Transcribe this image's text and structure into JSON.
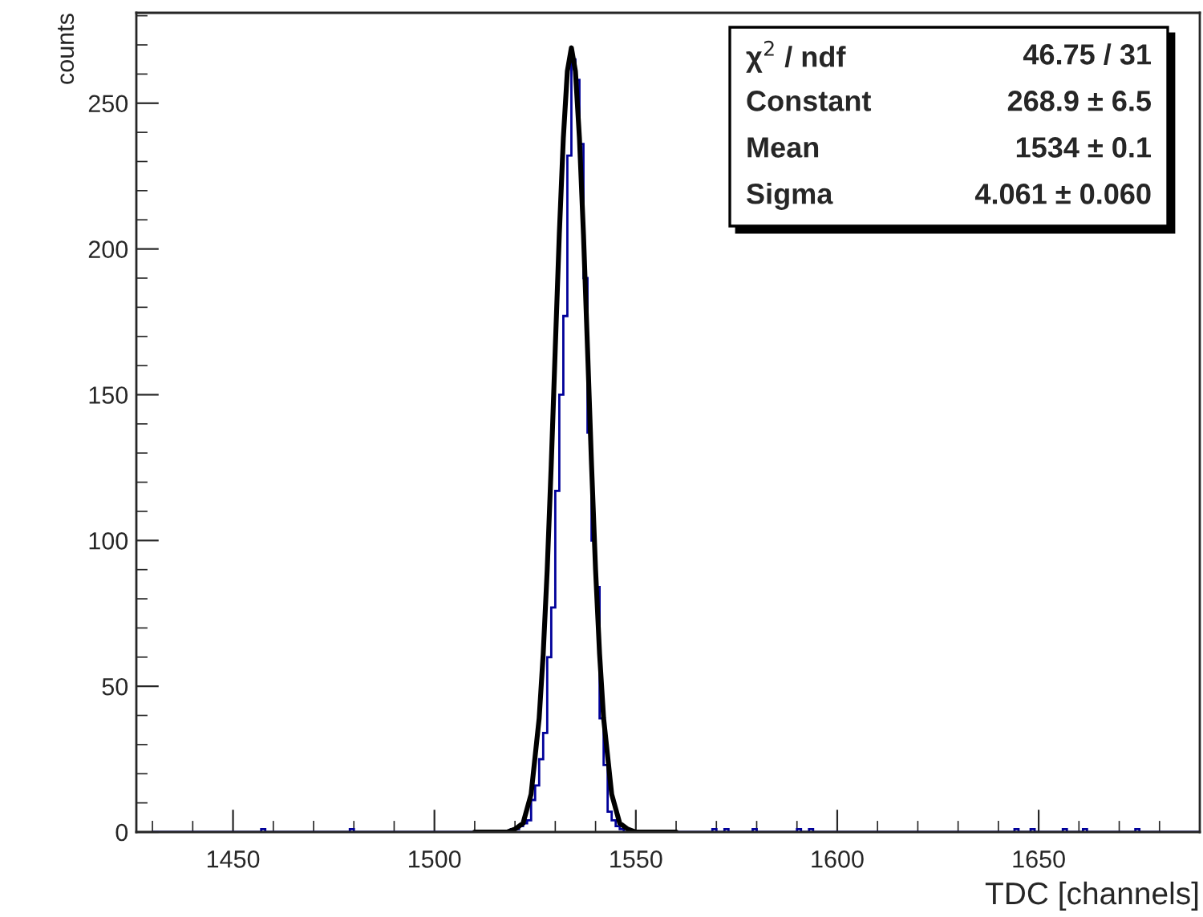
{
  "chart_data": {
    "type": "histogram",
    "xlabel": "TDC [channels]",
    "ylabel": "counts",
    "xlim": [
      1426,
      1690
    ],
    "ylim": [
      0,
      281
    ],
    "xticks": [
      1450,
      1500,
      1550,
      1600,
      1650
    ],
    "yticks": [
      0,
      50,
      100,
      150,
      200,
      250
    ],
    "grid": false,
    "legend": false,
    "bins": [
      1430,
      1431,
      1432,
      1433,
      1434,
      1435,
      1436,
      1437,
      1438,
      1439,
      1440,
      1441,
      1442,
      1443,
      1444,
      1445,
      1446,
      1447,
      1448,
      1449,
      1450,
      1451,
      1452,
      1453,
      1454,
      1455,
      1456,
      1457,
      1458,
      1459,
      1460,
      1461,
      1462,
      1463,
      1464,
      1465,
      1466,
      1467,
      1468,
      1469,
      1470,
      1471,
      1472,
      1473,
      1474,
      1475,
      1476,
      1477,
      1478,
      1479,
      1480,
      1481,
      1482,
      1483,
      1484,
      1485,
      1486,
      1487,
      1488,
      1489,
      1490,
      1491,
      1492,
      1493,
      1494,
      1495,
      1496,
      1497,
      1498,
      1499,
      1500,
      1501,
      1502,
      1503,
      1504,
      1505,
      1506,
      1507,
      1508,
      1509,
      1510,
      1511,
      1512,
      1513,
      1514,
      1515,
      1516,
      1517,
      1518,
      1519,
      1520,
      1521,
      1522,
      1523,
      1524,
      1525,
      1526,
      1527,
      1528,
      1529,
      1530,
      1531,
      1532,
      1533,
      1534,
      1535,
      1536,
      1537,
      1538,
      1539,
      1540,
      1541,
      1542,
      1543,
      1544,
      1545,
      1546,
      1547,
      1548,
      1549,
      1550,
      1551,
      1552,
      1553,
      1554,
      1555,
      1556,
      1557,
      1558,
      1559,
      1560,
      1561,
      1562,
      1563,
      1564,
      1565,
      1566,
      1567,
      1568,
      1569,
      1570,
      1571,
      1572,
      1573,
      1574,
      1575,
      1576,
      1577,
      1578,
      1579,
      1580,
      1581,
      1582,
      1583,
      1584,
      1585,
      1586,
      1587,
      1588,
      1589,
      1590,
      1591,
      1592,
      1593,
      1594,
      1595,
      1596,
      1597,
      1598,
      1599,
      1600,
      1601,
      1602,
      1603,
      1604,
      1605,
      1606,
      1607,
      1608,
      1609,
      1610,
      1611,
      1612,
      1613,
      1614,
      1615,
      1616,
      1617,
      1618,
      1619,
      1620,
      1621,
      1622,
      1623,
      1624,
      1625,
      1626,
      1627,
      1628,
      1629,
      1630,
      1631,
      1632,
      1633,
      1634,
      1635,
      1636,
      1637,
      1638,
      1639,
      1640,
      1641,
      1642,
      1643,
      1644,
      1645,
      1646,
      1647,
      1648,
      1649,
      1650,
      1651,
      1652,
      1653,
      1654,
      1655,
      1656,
      1657,
      1658,
      1659,
      1660,
      1661,
      1662,
      1663,
      1664,
      1665,
      1666,
      1667,
      1668,
      1669,
      1670,
      1671,
      1672,
      1673,
      1674,
      1675,
      1676,
      1677,
      1678,
      1679,
      1680,
      1681,
      1682,
      1683,
      1684,
      1685,
      1686,
      1687,
      1688,
      1689,
      1690
    ],
    "series": [
      {
        "color": "#000099",
        "values": [
          0,
          0,
          0,
          0,
          0,
          0,
          0,
          0,
          0,
          0,
          0,
          0,
          0,
          0,
          0,
          0,
          0,
          0,
          0,
          0,
          0,
          0,
          0,
          0,
          0,
          0,
          0,
          1,
          0,
          0,
          0,
          0,
          0,
          0,
          0,
          0,
          0,
          0,
          0,
          0,
          0,
          0,
          0,
          0,
          0,
          0,
          0,
          0,
          0,
          1,
          0,
          0,
          0,
          0,
          0,
          0,
          0,
          0,
          0,
          0,
          0,
          0,
          0,
          0,
          0,
          0,
          0,
          0,
          0,
          0,
          0,
          0,
          0,
          0,
          0,
          0,
          0,
          0,
          0,
          0,
          0,
          0,
          0,
          0,
          0,
          0,
          0,
          0,
          0,
          1,
          1,
          2,
          3,
          4,
          11,
          16,
          25,
          34,
          60,
          77,
          117,
          150,
          177,
          232,
          265,
          258,
          236,
          190,
          137,
          100,
          84,
          39,
          23,
          7,
          4,
          2,
          1,
          0,
          0,
          0,
          0,
          0,
          0,
          0,
          0,
          0,
          0,
          0,
          0,
          0,
          0,
          0,
          0,
          0,
          0,
          0,
          0,
          0,
          0,
          1,
          0,
          0,
          1,
          0,
          0,
          0,
          0,
          0,
          0,
          1,
          0,
          0,
          0,
          0,
          0,
          0,
          0,
          0,
          0,
          0,
          1,
          0,
          0,
          1,
          0,
          0,
          0,
          0,
          0,
          0,
          0,
          0,
          0,
          0,
          0,
          0,
          0,
          0,
          0,
          0,
          0,
          0,
          0,
          0,
          0,
          0,
          0,
          0,
          0,
          0,
          0,
          0,
          0,
          0,
          0,
          0,
          0,
          0,
          0,
          0,
          0,
          0,
          0,
          0,
          0,
          0,
          0,
          0,
          0,
          0,
          0,
          0,
          0,
          0,
          1,
          0,
          0,
          0,
          1,
          0,
          0,
          0,
          0,
          0,
          0,
          0,
          1,
          0,
          0,
          0,
          0,
          1,
          0,
          0,
          0,
          0,
          0,
          0,
          0,
          0,
          0,
          0,
          0,
          0,
          1,
          0,
          0,
          0,
          0,
          0,
          0,
          0,
          0,
          0,
          0,
          0,
          0,
          0,
          0,
          0
        ]
      },
      {
        "type": "line",
        "color": "#000000",
        "x": [
          1510,
          1515,
          1518,
          1520,
          1522,
          1524,
          1526,
          1527,
          1528,
          1529,
          1530,
          1531,
          1532,
          1533,
          1534,
          1535,
          1536,
          1537,
          1538,
          1539,
          1540,
          1541,
          1542,
          1544,
          1546,
          1548,
          1550,
          1553,
          1560
        ],
        "values": [
          0,
          0,
          0,
          1,
          3,
          13,
          39,
          61,
          90,
          126,
          166,
          205,
          238,
          261,
          269,
          261,
          238,
          205,
          166,
          126,
          90,
          61,
          39,
          13,
          3,
          1,
          0,
          0,
          0
        ]
      }
    ],
    "annotations": [
      "χ$^{2}$ / ndf",
      "46.75 / 31",
      "Constant",
      "268.9 ± 6.5",
      "Mean",
      "1534 ± 0.1",
      "Sigma",
      "4.061 ± 0.060"
    ]
  }
}
